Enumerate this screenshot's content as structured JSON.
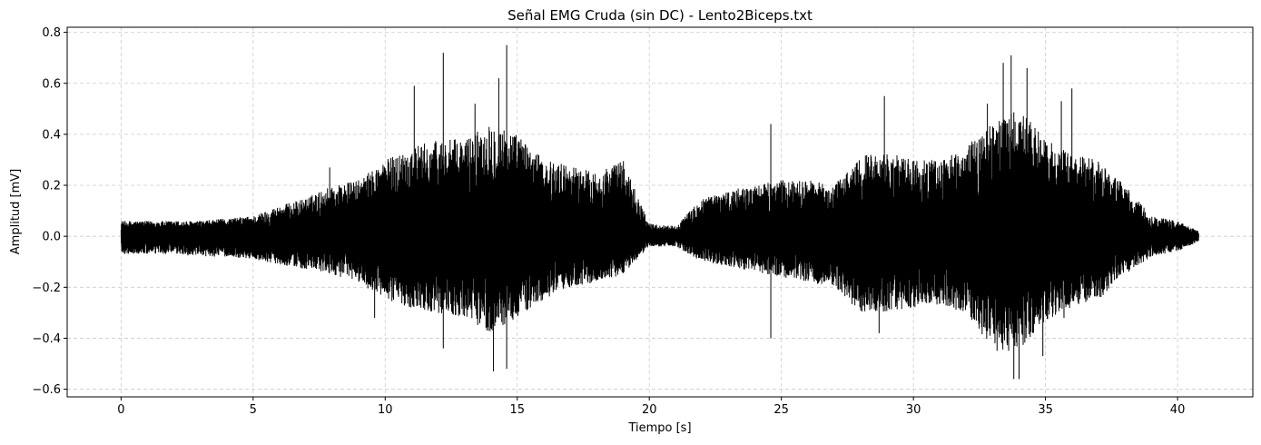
{
  "chart_data": {
    "type": "line",
    "title": "Señal EMG Cruda (sin DC) - Lento2Biceps.txt",
    "xlabel": "Tiempo [s]",
    "ylabel": "Amplitud [mV]",
    "xlim": [
      -2.04,
      42.85
    ],
    "ylim": [
      -0.63,
      0.82
    ],
    "xticks": [
      0,
      5,
      10,
      15,
      20,
      25,
      30,
      35,
      40
    ],
    "yticks": [
      -0.6,
      -0.4,
      -0.2,
      0.0,
      0.2,
      0.4,
      0.6,
      0.8
    ],
    "xtick_labels": [
      "0",
      "5",
      "10",
      "15",
      "20",
      "25",
      "30",
      "35",
      "40"
    ],
    "ytick_labels": [
      "−0.6",
      "−0.4",
      "−0.2",
      "0.0",
      "0.2",
      "0.4",
      "0.6",
      "0.8"
    ],
    "grid": true,
    "line_color": "#000000",
    "x_range": [
      0,
      40.8
    ],
    "envelope": {
      "x": [
        0,
        1,
        2,
        3,
        4,
        5,
        6,
        7,
        8,
        9,
        10,
        11,
        12,
        13,
        14,
        15,
        16,
        17,
        18,
        19,
        20,
        21,
        22,
        23,
        24,
        25,
        26,
        27,
        28,
        29,
        30,
        31,
        32,
        33,
        34,
        35,
        36,
        37,
        38,
        39,
        40,
        40.8
      ],
      "upper": [
        0.06,
        0.06,
        0.06,
        0.06,
        0.07,
        0.08,
        0.12,
        0.15,
        0.2,
        0.22,
        0.3,
        0.35,
        0.38,
        0.38,
        0.45,
        0.4,
        0.3,
        0.28,
        0.25,
        0.3,
        0.05,
        0.04,
        0.15,
        0.18,
        0.2,
        0.22,
        0.22,
        0.2,
        0.32,
        0.33,
        0.3,
        0.3,
        0.35,
        0.45,
        0.5,
        0.38,
        0.32,
        0.3,
        0.2,
        0.08,
        0.06,
        0.02
      ],
      "lower": [
        -0.07,
        -0.07,
        -0.07,
        -0.08,
        -0.08,
        -0.09,
        -0.11,
        -0.13,
        -0.15,
        -0.18,
        -0.25,
        -0.28,
        -0.3,
        -0.32,
        -0.38,
        -0.32,
        -0.25,
        -0.2,
        -0.18,
        -0.15,
        -0.04,
        -0.04,
        -0.1,
        -0.12,
        -0.14,
        -0.16,
        -0.18,
        -0.2,
        -0.3,
        -0.3,
        -0.28,
        -0.27,
        -0.3,
        -0.45,
        -0.45,
        -0.33,
        -0.28,
        -0.25,
        -0.15,
        -0.08,
        -0.06,
        -0.02
      ]
    },
    "peaks": [
      {
        "x": 12.2,
        "y": 0.72
      },
      {
        "x": 14.6,
        "y": 0.75
      },
      {
        "x": 14.3,
        "y": 0.62
      },
      {
        "x": 11.1,
        "y": 0.59
      },
      {
        "x": 13.4,
        "y": 0.52
      },
      {
        "x": 33.7,
        "y": 0.71
      },
      {
        "x": 33.4,
        "y": 0.68
      },
      {
        "x": 34.3,
        "y": 0.66
      },
      {
        "x": 32.8,
        "y": 0.52
      },
      {
        "x": 28.9,
        "y": 0.55
      },
      {
        "x": 35.6,
        "y": 0.53
      },
      {
        "x": 36.0,
        "y": 0.58
      },
      {
        "x": 24.6,
        "y": 0.44
      },
      {
        "x": 7.9,
        "y": 0.27
      },
      {
        "x": 18.9,
        "y": 0.29
      },
      {
        "x": 12.2,
        "y": -0.44
      },
      {
        "x": 14.1,
        "y": -0.53
      },
      {
        "x": 14.6,
        "y": -0.52
      },
      {
        "x": 9.6,
        "y": -0.32
      },
      {
        "x": 34.0,
        "y": -0.56
      },
      {
        "x": 33.8,
        "y": -0.56
      },
      {
        "x": 34.9,
        "y": -0.47
      },
      {
        "x": 24.6,
        "y": -0.4
      },
      {
        "x": 28.7,
        "y": -0.38
      },
      {
        "x": 35.7,
        "y": -0.32
      }
    ]
  }
}
